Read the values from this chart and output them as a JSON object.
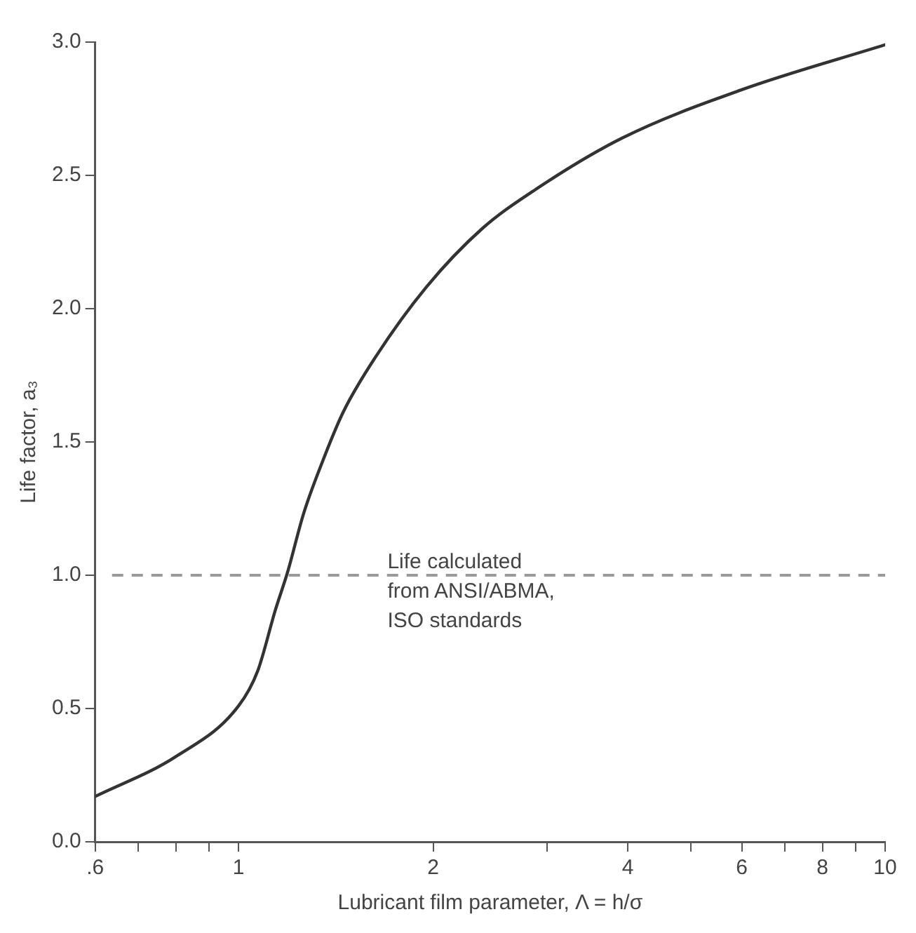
{
  "chart_data": {
    "type": "line",
    "xlabel": "Lubricant film parameter, Λ = h/σ",
    "ylabel": "Life factor, a₃",
    "log": "x",
    "xlim": [
      0.6,
      10
    ],
    "ylim": [
      0,
      3
    ],
    "xticks": [
      {
        "value": 0.6,
        "label": ".6"
      },
      {
        "value": 0.7,
        "label": null
      },
      {
        "value": 0.8,
        "label": null
      },
      {
        "value": 0.9,
        "label": null
      },
      1,
      2,
      {
        "value": 3,
        "label": null
      },
      4,
      {
        "value": 5,
        "label": null
      },
      6,
      {
        "value": 7,
        "label": null
      },
      8,
      {
        "value": 9,
        "label": null
      },
      10
    ],
    "yticks": [
      {
        "value": 0,
        "label": "0.0"
      },
      0.5,
      {
        "value": 1,
        "label": "1.0"
      },
      1.5,
      {
        "value": 2,
        "label": "2.0"
      },
      2.5,
      {
        "value": 3,
        "label": "3.0"
      }
    ],
    "series": [
      {
        "color": "#333333",
        "x": [
          0.6,
          0.8,
          1.0,
          1.07,
          1.14,
          1.19,
          1.26,
          1.34,
          1.45,
          1.63,
          1.95,
          2.38,
          2.85,
          3.92,
          5.98,
          10
        ],
        "values": [
          0.17,
          0.32,
          0.51,
          0.64,
          0.87,
          1.01,
          1.23,
          1.41,
          1.61,
          1.82,
          2.08,
          2.3,
          2.44,
          2.64,
          2.82,
          2.99
        ]
      }
    ],
    "ref_lines": [
      {
        "axis": "y",
        "value": 1,
        "label": "Life calculated\nfrom ANSI/ABMA,\nISO standards",
        "color": "#999999",
        "line_style": "dashed"
      }
    ],
    "grid": false,
    "legend": false,
    "marker": "none",
    "line_style": "solid"
  }
}
